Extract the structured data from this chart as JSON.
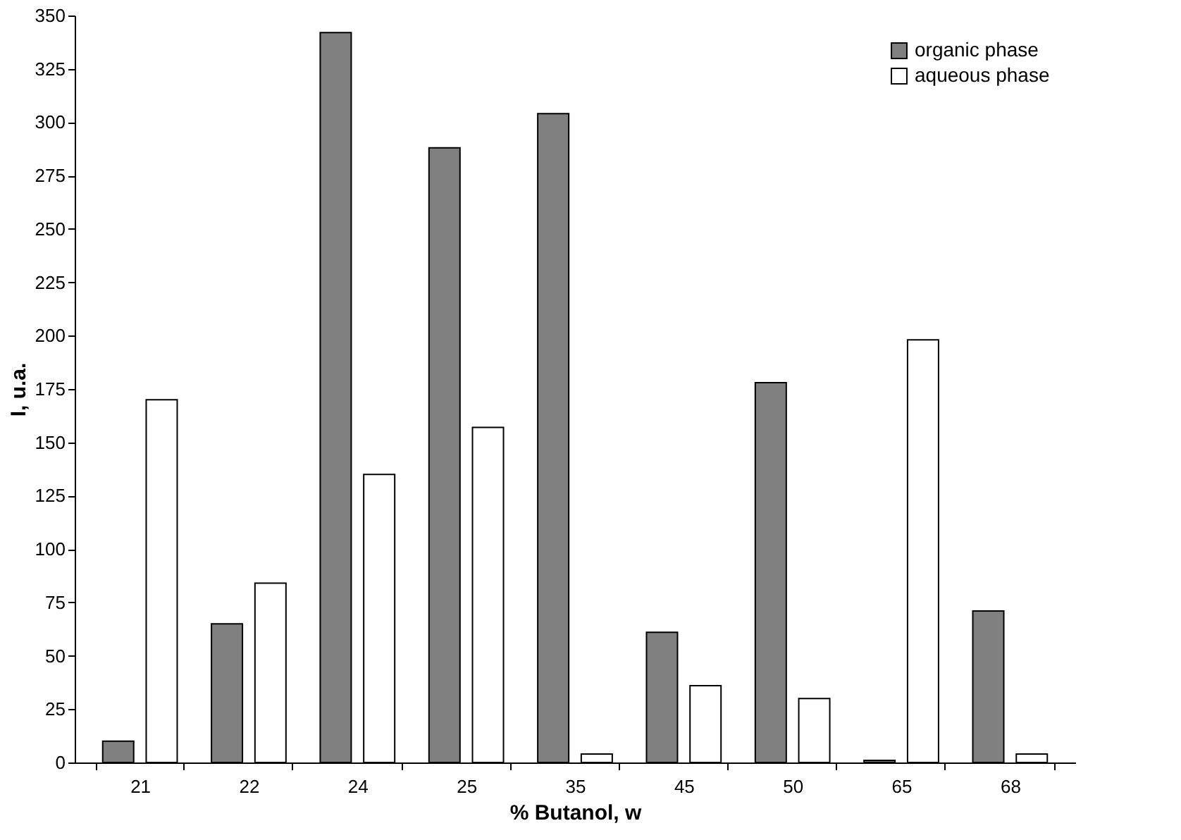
{
  "chart_data": {
    "type": "bar",
    "xlabel": "% Butanol, w",
    "ylabel": "I, u.a.",
    "categories": [
      "21",
      "22",
      "24",
      "25",
      "35",
      "45",
      "50",
      "65",
      "68"
    ],
    "series": [
      {
        "name": "organic phase",
        "color": "#808080",
        "values": [
          10,
          65,
          342,
          288,
          304,
          61,
          178,
          1,
          71
        ]
      },
      {
        "name": "aqueous phase",
        "color": "#ffffff",
        "values": [
          170,
          84,
          135,
          157,
          4,
          36,
          30,
          198,
          4
        ]
      }
    ],
    "ylim": [
      0,
      350
    ],
    "yticks": [
      0,
      25,
      50,
      75,
      100,
      125,
      150,
      175,
      200,
      225,
      250,
      275,
      300,
      325,
      350
    ],
    "grid": false,
    "legend": "top right"
  }
}
